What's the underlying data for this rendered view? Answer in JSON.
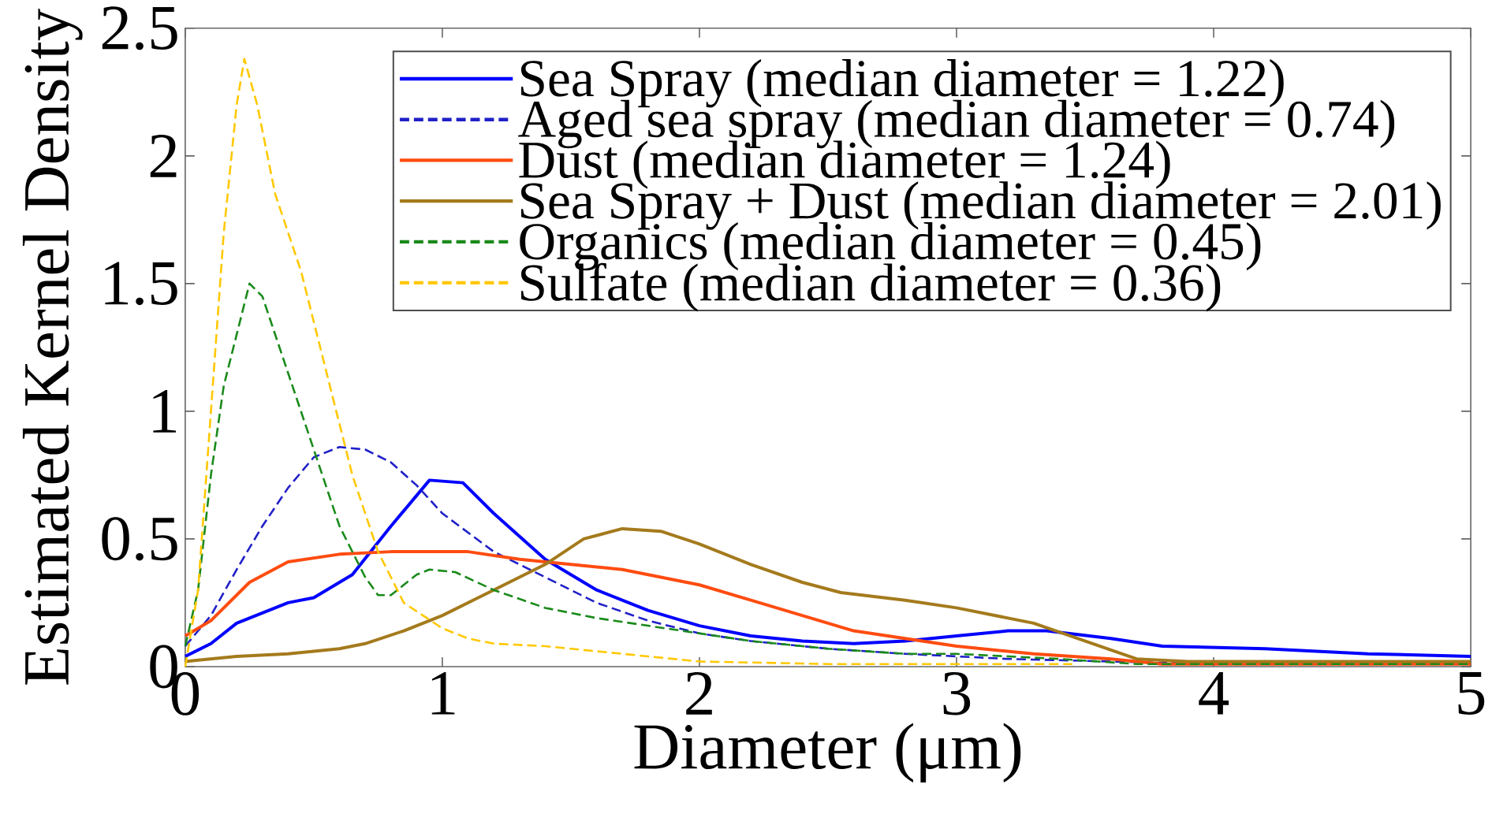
{
  "chart_data": {
    "type": "line",
    "xlabel": "Diameter (μm)",
    "ylabel": "Estimated Kernel Density",
    "xlim": [
      0,
      5
    ],
    "ylim": [
      0,
      2.5
    ],
    "xticks": [
      0,
      1,
      2,
      3,
      4,
      5
    ],
    "yticks": [
      0,
      0.5,
      1,
      1.5,
      2,
      2.5
    ],
    "legend": "top right",
    "marker": "none",
    "series": [
      {
        "name": "Sea Spray (median diameter = 1.22)",
        "color": "#0000ff",
        "line_style": "solid",
        "x": [
          0,
          0.1,
          0.2,
          0.3,
          0.4,
          0.5,
          0.65,
          0.8,
          0.95,
          1.08,
          1.2,
          1.4,
          1.6,
          1.8,
          2.0,
          2.2,
          2.4,
          2.6,
          2.8,
          3.0,
          3.2,
          3.35,
          3.6,
          3.8,
          4.2,
          4.6,
          5
        ],
        "values": [
          0.04,
          0.09,
          0.17,
          0.21,
          0.25,
          0.27,
          0.36,
          0.55,
          0.73,
          0.72,
          0.6,
          0.42,
          0.3,
          0.22,
          0.16,
          0.12,
          0.1,
          0.09,
          0.1,
          0.12,
          0.14,
          0.14,
          0.11,
          0.08,
          0.07,
          0.05,
          0.04
        ]
      },
      {
        "name": "Aged sea spray (median diameter = 0.74)",
        "color": "#2020c8",
        "line_style": "dashed",
        "x": [
          0,
          0.1,
          0.2,
          0.3,
          0.4,
          0.5,
          0.6,
          0.7,
          0.8,
          0.9,
          1.0,
          1.2,
          1.4,
          1.6,
          1.8,
          2.0,
          2.2,
          2.5,
          2.8,
          3.2,
          3.6,
          4,
          5
        ],
        "values": [
          0.08,
          0.2,
          0.38,
          0.55,
          0.7,
          0.82,
          0.86,
          0.85,
          0.8,
          0.71,
          0.6,
          0.45,
          0.35,
          0.25,
          0.18,
          0.13,
          0.1,
          0.07,
          0.05,
          0.03,
          0.02,
          0.01,
          0.01
        ]
      },
      {
        "name": "Dust (median diameter = 1.24)",
        "color": "#ff4c10",
        "line_style": "solid",
        "x": [
          0,
          0.1,
          0.25,
          0.4,
          0.6,
          0.8,
          1.0,
          1.1,
          1.3,
          1.5,
          1.7,
          1.8,
          2.0,
          2.2,
          2.4,
          2.6,
          2.8,
          3.0,
          3.3,
          3.6,
          3.8,
          4.5,
          5
        ],
        "values": [
          0.12,
          0.18,
          0.33,
          0.41,
          0.44,
          0.45,
          0.45,
          0.45,
          0.42,
          0.4,
          0.38,
          0.36,
          0.32,
          0.26,
          0.2,
          0.14,
          0.11,
          0.08,
          0.05,
          0.03,
          0.01,
          0.01,
          0.01
        ]
      },
      {
        "name": "Sea Spray + Dust (median diameter = 2.01)",
        "color": "#a47a1c",
        "line_style": "solid",
        "x": [
          0,
          0.2,
          0.4,
          0.6,
          0.7,
          0.85,
          1.0,
          1.2,
          1.4,
          1.55,
          1.7,
          1.85,
          2.0,
          2.2,
          2.4,
          2.55,
          2.8,
          3.0,
          3.3,
          3.5,
          3.7,
          3.9,
          4.5,
          5
        ],
        "values": [
          0.02,
          0.04,
          0.05,
          0.07,
          0.09,
          0.14,
          0.2,
          0.3,
          0.4,
          0.5,
          0.54,
          0.53,
          0.48,
          0.4,
          0.33,
          0.29,
          0.26,
          0.23,
          0.17,
          0.1,
          0.03,
          0.02,
          0.02,
          0.02
        ]
      },
      {
        "name": "Organics (median diameter = 0.45)",
        "color": "#1a8a1a",
        "line_style": "dashed",
        "x": [
          0,
          0.05,
          0.1,
          0.15,
          0.2,
          0.25,
          0.3,
          0.4,
          0.5,
          0.6,
          0.7,
          0.75,
          0.8,
          0.9,
          0.95,
          1.05,
          1.2,
          1.4,
          1.6,
          1.8,
          2.0,
          2.2,
          2.5,
          2.8,
          3.0,
          3.4,
          3.7,
          5
        ],
        "values": [
          0.08,
          0.3,
          0.75,
          1.1,
          1.3,
          1.5,
          1.45,
          1.15,
          0.85,
          0.55,
          0.35,
          0.28,
          0.28,
          0.36,
          0.38,
          0.37,
          0.3,
          0.23,
          0.19,
          0.16,
          0.13,
          0.1,
          0.07,
          0.05,
          0.05,
          0.03,
          0.01,
          0.01
        ]
      },
      {
        "name": "Sulfate (median diameter = 0.36)",
        "color": "#ffc800",
        "line_style": "dashed",
        "x": [
          0,
          0.05,
          0.1,
          0.15,
          0.2,
          0.23,
          0.28,
          0.35,
          0.45,
          0.55,
          0.65,
          0.75,
          0.85,
          1.0,
          1.1,
          1.2,
          1.4,
          1.6,
          1.8,
          2.0,
          2.5,
          3.0,
          3.45
        ],
        "values": [
          0.0,
          0.3,
          1.0,
          1.7,
          2.2,
          2.38,
          2.2,
          1.85,
          1.55,
          1.15,
          0.75,
          0.45,
          0.25,
          0.15,
          0.11,
          0.09,
          0.08,
          0.06,
          0.04,
          0.02,
          0.01,
          0.01,
          0.01
        ]
      }
    ]
  }
}
